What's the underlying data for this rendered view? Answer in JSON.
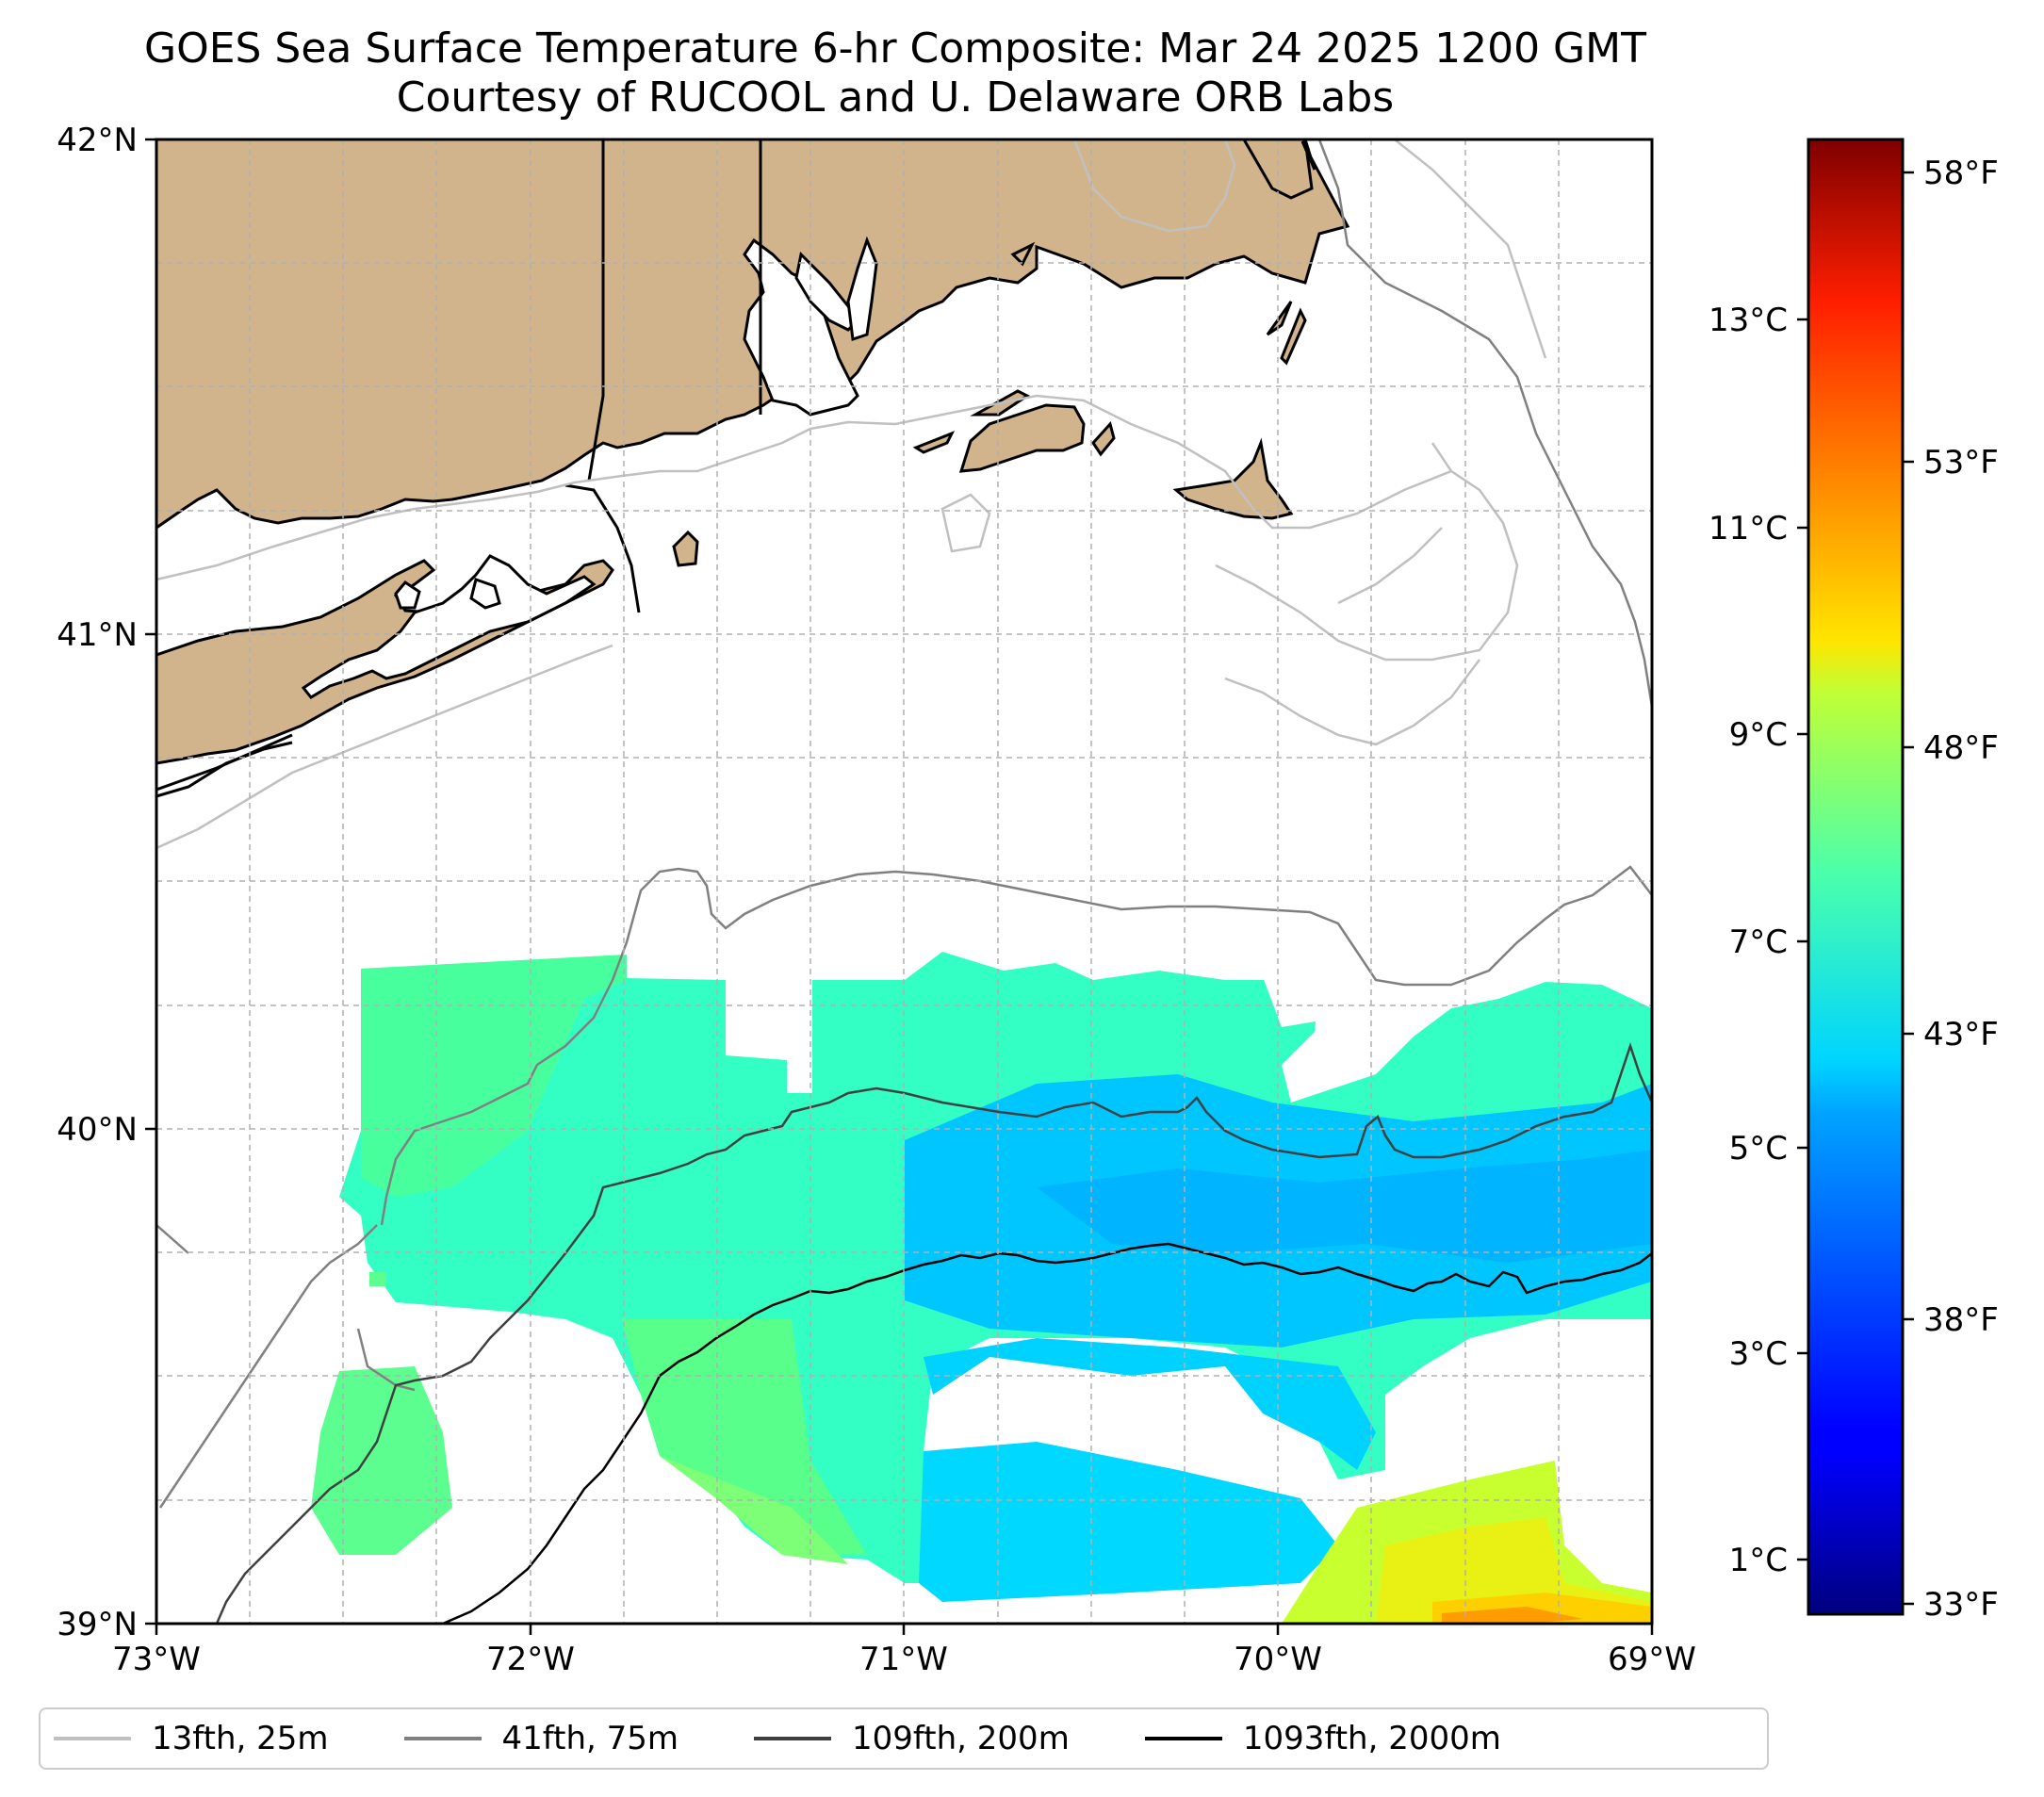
{
  "title": "GOES Sea Surface Temperature 6-hr Composite: Mar 24 2025 1200 GMT",
  "subtitle": "Courtesy of RUCOOL and U. Delaware ORB Labs",
  "map": {
    "lon_range": [
      -73,
      -69
    ],
    "lat_range": [
      39,
      42
    ],
    "x_ticks": [
      "73°W",
      "72°W",
      "71°W",
      "70°W",
      "69°W"
    ],
    "y_ticks": [
      "39°N",
      "40°N",
      "41°N",
      "42°N"
    ],
    "grid": true,
    "land_color": "#d2b48c",
    "ocean_color": "#ffffff"
  },
  "colorbar": {
    "colormap": "jet",
    "celsius_ticks": [
      "1°C",
      "3°C",
      "5°C",
      "7°C",
      "9°C",
      "11°C",
      "13°C"
    ],
    "fahrenheit_ticks": [
      "33°F",
      "38°F",
      "43°F",
      "48°F",
      "53°F",
      "58°F"
    ]
  },
  "legend": {
    "placement": "bottom",
    "items": [
      {
        "label": "13fth, 25m",
        "color": "#c0c0c0"
      },
      {
        "label": "41fth, 75m",
        "color": "#808080"
      },
      {
        "label": "109fth, 200m",
        "color": "#404040"
      },
      {
        "label": "1093fth, 2000m",
        "color": "#000000"
      }
    ]
  }
}
